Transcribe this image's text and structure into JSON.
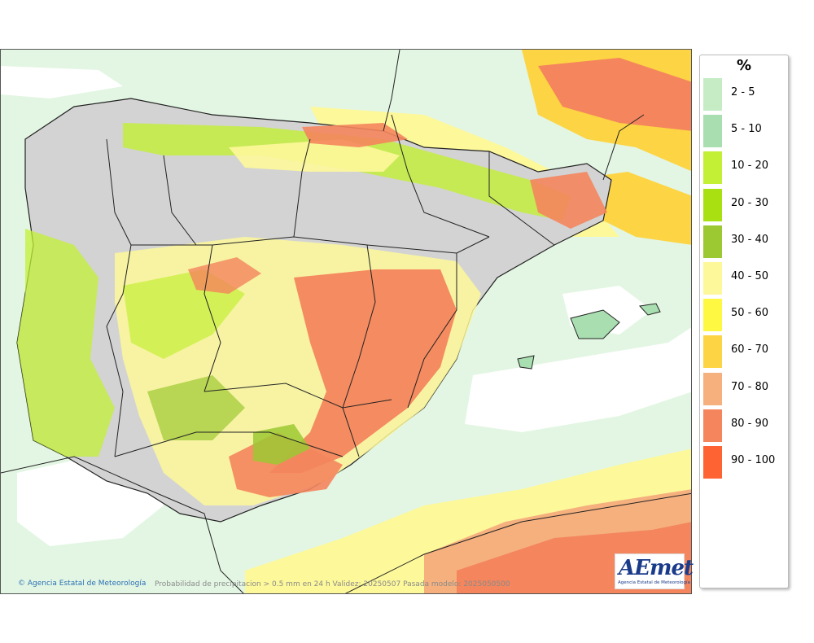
{
  "legend": {
    "title": "%",
    "items": [
      {
        "label": "2 - 5",
        "color": "#c6ecc6"
      },
      {
        "label": "5 - 10",
        "color": "#a8deb0"
      },
      {
        "label": "10 - 20",
        "color": "#c3f035"
      },
      {
        "label": "20 - 30",
        "color": "#a8e011"
      },
      {
        "label": "30 - 40",
        "color": "#9cc832"
      },
      {
        "label": "40 - 50",
        "color": "#fdf89a"
      },
      {
        "label": "50 - 60",
        "color": "#fef842"
      },
      {
        "label": "60 - 70",
        "color": "#fdd443"
      },
      {
        "label": "70 - 80",
        "color": "#f5b07e"
      },
      {
        "label": "80 - 90",
        "color": "#f4855d"
      },
      {
        "label": "90 - 100",
        "color": "#fe6333"
      }
    ]
  },
  "footer": {
    "agency": "Agencia Estatal de Meteorología",
    "caption": "Probabilidad de precipitacion > 0.5 mm en 24 h Validez: 20250507 Pasada modelo: 2025050500"
  },
  "logo": {
    "mark": "AEmet",
    "text": "Agencia Estatal de Meteorología"
  },
  "colors": {
    "land_gray": "#d0d0d0",
    "border": "#222222",
    "sea_base": "#e8f7e8"
  }
}
